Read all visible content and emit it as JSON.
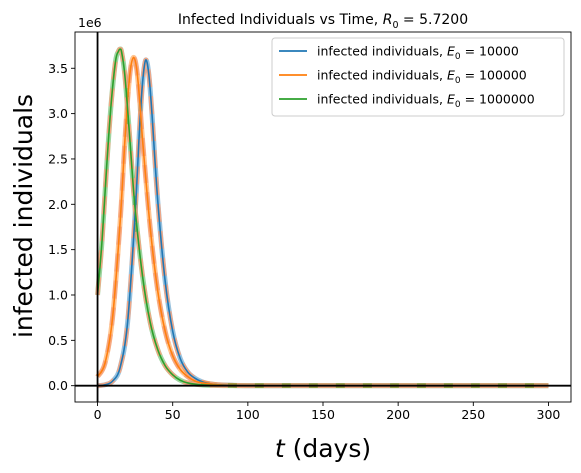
{
  "chart_data": {
    "type": "line",
    "title": "Infected Individuals vs Time, R₀ = 5.7200",
    "title_main": "Infected Individuals vs Time, ",
    "title_symbol": "R",
    "title_subscript": "0",
    "title_value": " = 5.7200",
    "xlabel_symbol": "t",
    "xlabel_rest": " (days)",
    "ylabel": "infected individuals",
    "y_offset_label": "1e6",
    "xlim": [
      -15,
      315
    ],
    "ylim": [
      -0.18,
      3.9
    ],
    "y_scale_multiplier": 1000000,
    "x_ticks": [
      0,
      50,
      100,
      150,
      200,
      250,
      300
    ],
    "x_tick_labels": [
      "0",
      "50",
      "100",
      "150",
      "200",
      "250",
      "300"
    ],
    "y_ticks": [
      0.0,
      0.5,
      1.0,
      1.5,
      2.0,
      2.5,
      3.0,
      3.5
    ],
    "y_tick_labels": [
      "0.0",
      "0.5",
      "1.0",
      "1.5",
      "2.0",
      "2.5",
      "3.0",
      "3.5"
    ],
    "grid": false,
    "legend_position": "top-right",
    "reference_lines": {
      "x_zero": true,
      "y_zero": true
    },
    "series": [
      {
        "name": "infected individuals, E₀ = 10000",
        "legend_prefix": "infected individuals, ",
        "legend_symbol": "E",
        "legend_subscript": "0",
        "legend_value": " = 10000",
        "color": "#1f77b4",
        "peak_x": 32,
        "peak_y": 3.59,
        "x": [
          0,
          5,
          10,
          15,
          20,
          25,
          28,
          30,
          32,
          34,
          36,
          40,
          45,
          50,
          55,
          60,
          65,
          70,
          75,
          80,
          90,
          100,
          120,
          150,
          200,
          250,
          300
        ],
        "y": [
          0.0,
          0.01,
          0.05,
          0.2,
          0.7,
          1.9,
          2.85,
          3.35,
          3.59,
          3.45,
          3.05,
          2.05,
          1.15,
          0.6,
          0.3,
          0.15,
          0.08,
          0.04,
          0.02,
          0.01,
          0.004,
          0.001,
          0.0,
          0.0,
          0.0,
          0.0,
          0.0
        ]
      },
      {
        "name": "infected individuals, E₀ = 100000",
        "legend_prefix": "infected individuals, ",
        "legend_symbol": "E",
        "legend_subscript": "0",
        "legend_value": " = 100000",
        "color": "#ff7f0e",
        "peak_x": 24,
        "peak_y": 3.62,
        "x": [
          0,
          5,
          10,
          15,
          18,
          20,
          22,
          24,
          26,
          28,
          30,
          35,
          40,
          45,
          50,
          55,
          60,
          65,
          70,
          80,
          90,
          100,
          120,
          150,
          200,
          250,
          300
        ],
        "y": [
          0.1,
          0.25,
          0.75,
          1.8,
          2.65,
          3.15,
          3.5,
          3.62,
          3.5,
          3.15,
          2.7,
          1.75,
          1.05,
          0.6,
          0.33,
          0.18,
          0.1,
          0.05,
          0.03,
          0.01,
          0.003,
          0.001,
          0.0,
          0.0,
          0.0,
          0.0,
          0.0
        ]
      },
      {
        "name": "infected individuals, E₀ = 1000000",
        "legend_prefix": "infected individuals, ",
        "legend_symbol": "E",
        "legend_subscript": "0",
        "legend_value": " = 1000000",
        "color": "#2ca02c",
        "peak_x": 15,
        "peak_y": 3.71,
        "x": [
          0,
          3,
          6,
          9,
          12,
          14,
          15,
          16,
          18,
          20,
          22,
          25,
          30,
          35,
          40,
          45,
          50,
          55,
          60,
          70,
          80,
          90,
          100,
          120,
          150,
          200,
          250,
          300
        ],
        "y": [
          1.0,
          1.6,
          2.4,
          3.1,
          3.58,
          3.69,
          3.71,
          3.68,
          3.45,
          3.05,
          2.6,
          1.95,
          1.2,
          0.7,
          0.4,
          0.22,
          0.12,
          0.06,
          0.03,
          0.008,
          0.002,
          0.0,
          0.0,
          0.0,
          0.0,
          0.0,
          0.0,
          0.0
        ]
      }
    ],
    "fit_overlay": {
      "style": "dashed",
      "color": "#f4a582",
      "note_visible": false
    }
  }
}
